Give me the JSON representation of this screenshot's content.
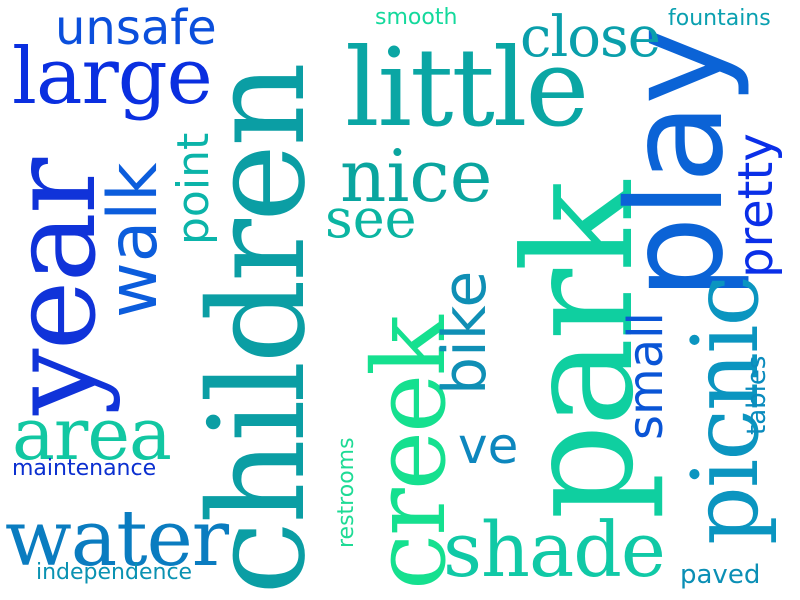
{
  "wordcloud": {
    "words": {
      "children": {
        "text": "children",
        "color": "#0b9ea4"
      },
      "park": {
        "text": "park",
        "color": "#0fcfa0"
      },
      "play": {
        "text": "play",
        "color": "#0b63d6"
      },
      "little": {
        "text": "little",
        "color": "#0aa6a4"
      },
      "large": {
        "text": "large",
        "color": "#0a2fe0"
      },
      "year": {
        "text": "year",
        "color": "#1033d9"
      },
      "walk": {
        "text": "walk",
        "color": "#0c5ddc"
      },
      "nice": {
        "text": "nice",
        "color": "#0aa59f"
      },
      "see": {
        "text": "see",
        "color": "#0bb5a2"
      },
      "close": {
        "text": "close",
        "color": "#0a9fab"
      },
      "unsafe": {
        "text": "unsafe",
        "color": "#0b4fdc"
      },
      "smooth": {
        "text": "smooth",
        "color": "#14d99c"
      },
      "fountains": {
        "text": "fountains",
        "color": "#0aa0b0"
      },
      "point": {
        "text": "point",
        "color": "#0bb4a9"
      },
      "creek": {
        "text": "creek",
        "color": "#15e08f"
      },
      "bike": {
        "text": "bike",
        "color": "#0f8fb5"
      },
      "ve": {
        "text": "ve",
        "color": "#0d87be"
      },
      "shade": {
        "text": "shade",
        "color": "#10c9a6"
      },
      "picnic": {
        "text": "picnic",
        "color": "#0b95c0"
      },
      "small": {
        "text": "small",
        "color": "#0a55d6"
      },
      "pretty": {
        "text": "pretty",
        "color": "#0a2fe8"
      },
      "tables": {
        "text": "tables",
        "color": "#0a8bbd"
      },
      "area": {
        "text": "area",
        "color": "#12c7a2"
      },
      "maintenance": {
        "text": "maintenance",
        "color": "#0b2fd0"
      },
      "water": {
        "text": "water",
        "color": "#0a7cc0"
      },
      "independence": {
        "text": "independence",
        "color": "#0a92b2"
      },
      "restrooms": {
        "text": "restrooms",
        "color": "#1edb95"
      },
      "paved": {
        "text": "paved",
        "color": "#0b8fb5"
      }
    }
  }
}
